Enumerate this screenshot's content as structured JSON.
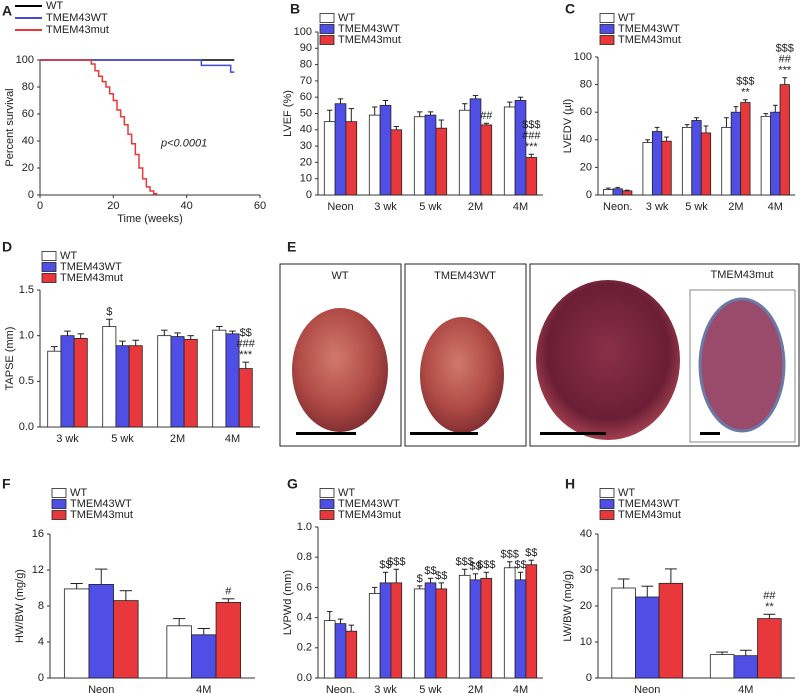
{
  "chart_data": [
    {
      "type": "line",
      "panel": "A",
      "ylabel": "Percent survival",
      "xlabel": "Time (weeks)",
      "annotation": "p<0.0001",
      "xlim": [
        0,
        60
      ],
      "xticks": [
        0,
        20,
        40,
        60
      ],
      "ylim": [
        0,
        100
      ],
      "yticks": [
        0,
        20,
        40,
        60,
        80,
        100
      ],
      "legend": "top",
      "series": [
        {
          "name": "WT",
          "color": "#000000",
          "x": [
            0,
            53
          ],
          "values": [
            100,
            100
          ]
        },
        {
          "name": "TMEM43WT",
          "color": "#4a4ad8",
          "x": [
            0,
            44,
            44,
            52,
            52,
            53
          ],
          "values": [
            100,
            100,
            96,
            96,
            91,
            91
          ]
        },
        {
          "name": "TMEM43mut",
          "color": "#e8383c",
          "x": [
            0,
            14,
            14,
            15,
            15,
            16,
            16,
            17,
            17,
            18,
            18,
            19,
            19,
            20,
            20,
            21,
            21,
            22,
            22,
            23,
            23,
            24,
            24,
            25,
            25,
            26,
            26,
            27,
            27,
            28,
            28,
            29,
            29,
            30,
            30,
            31,
            31,
            32
          ],
          "values": [
            100,
            100,
            97,
            97,
            92,
            92,
            88,
            88,
            84,
            84,
            80,
            80,
            75,
            75,
            70,
            70,
            63,
            63,
            58,
            58,
            52,
            52,
            45,
            45,
            38,
            38,
            30,
            30,
            20,
            20,
            12,
            12,
            6,
            6,
            3,
            3,
            1,
            1
          ]
        }
      ]
    },
    {
      "type": "bar",
      "panel": "B",
      "ylabel": "LVEF (%)",
      "categories": [
        "Neon",
        "3 wk",
        "5 wk",
        "2M",
        "4M"
      ],
      "ylim": [
        0,
        100
      ],
      "yticks": [
        0,
        10,
        20,
        30,
        40,
        50,
        60,
        70,
        80,
        90,
        100
      ],
      "legend": "upper left",
      "series": [
        {
          "name": "WT",
          "color": "#ffffff",
          "values": [
            45,
            49,
            48,
            52,
            54
          ],
          "errors": [
            7,
            5,
            3,
            4,
            3
          ]
        },
        {
          "name": "TMEM43WT",
          "color": "#4f4fe6",
          "values": [
            56,
            55,
            49,
            59,
            58
          ],
          "errors": [
            3,
            3,
            2,
            2,
            2
          ]
        },
        {
          "name": "TMEM43mut",
          "color": "#e8383c",
          "values": [
            45,
            40,
            41,
            43,
            23
          ],
          "errors": [
            8,
            2,
            5,
            1,
            2
          ],
          "annotations": [
            null,
            null,
            null,
            [
              "##"
            ],
            [
              "$$$",
              "###",
              "***"
            ]
          ]
        }
      ]
    },
    {
      "type": "bar",
      "panel": "C",
      "ylabel": "LVEDV (µl)",
      "categories": [
        "Neon.",
        "3 wk",
        "5 wk",
        "2M",
        "4M"
      ],
      "ylim": [
        0,
        100
      ],
      "yticks": [
        0,
        20,
        40,
        60,
        80,
        100
      ],
      "legend": "upper left",
      "series": [
        {
          "name": "WT",
          "color": "#ffffff",
          "values": [
            4,
            38,
            49,
            49,
            57
          ],
          "errors": [
            1,
            2,
            2,
            7,
            2
          ]
        },
        {
          "name": "TMEM43WT",
          "color": "#4f4fe6",
          "values": [
            4.5,
            46,
            54,
            60,
            60
          ],
          "errors": [
            1,
            3,
            2,
            4,
            5
          ]
        },
        {
          "name": "TMEM43mut",
          "color": "#e8383c",
          "values": [
            3,
            39,
            45,
            67,
            80
          ],
          "errors": [
            0.5,
            3,
            5,
            2,
            5
          ],
          "annotations": [
            null,
            null,
            null,
            [
              "$$$",
              "**"
            ],
            [
              "$$$",
              "##",
              "***"
            ]
          ]
        }
      ]
    },
    {
      "type": "bar",
      "panel": "D",
      "ylabel": "TAPSE (mm)",
      "categories": [
        "3 wk",
        "5 wk",
        "2M",
        "4M"
      ],
      "ylim": [
        0,
        1.5
      ],
      "yticks": [
        {
          "value": 0,
          "label": "0.0"
        },
        {
          "value": 0.5,
          "label": "0.5"
        },
        {
          "value": 1,
          "label": "1.0"
        },
        {
          "value": 1.5,
          "label": "1.5"
        }
      ],
      "legend": "upper left",
      "series": [
        {
          "name": "WT",
          "color": "#ffffff",
          "values": [
            0.83,
            1.1,
            1.0,
            1.06
          ],
          "errors": [
            0.05,
            0.08,
            0.06,
            0.04
          ],
          "annotations": [
            null,
            [
              "$"
            ],
            null,
            null
          ]
        },
        {
          "name": "TMEM43WT",
          "color": "#4f4fe6",
          "values": [
            1.0,
            0.89,
            0.99,
            1.02
          ],
          "errors": [
            0.05,
            0.05,
            0.04,
            0.03
          ]
        },
        {
          "name": "TMEM43mut",
          "color": "#e8383c",
          "values": [
            0.97,
            0.89,
            0.96,
            0.64
          ],
          "errors": [
            0.05,
            0.06,
            0.04,
            0.07
          ],
          "annotations": [
            null,
            null,
            null,
            [
              "$$",
              "###",
              "***"
            ]
          ]
        }
      ]
    },
    {
      "type": "bar",
      "panel": "F",
      "ylabel": "HW/BW (mg/g)",
      "categories": [
        "Neon",
        "4M"
      ],
      "ylim": [
        0,
        16
      ],
      "yticks": [
        0,
        4,
        8,
        12,
        16
      ],
      "legend": "upper left",
      "series": [
        {
          "name": "WT",
          "color": "#ffffff",
          "values": [
            9.9,
            5.8
          ],
          "errors": [
            0.6,
            0.8
          ]
        },
        {
          "name": "TMEM43WT",
          "color": "#4f4fe6",
          "values": [
            10.4,
            4.8
          ],
          "errors": [
            1.7,
            0.7
          ]
        },
        {
          "name": "TMEM43mut",
          "color": "#e8383c",
          "values": [
            8.6,
            8.4
          ],
          "errors": [
            1.1,
            0.4
          ],
          "annotations": [
            null,
            [
              "#"
            ]
          ]
        }
      ]
    },
    {
      "type": "bar",
      "panel": "G",
      "ylabel": "LVPWd (mm)",
      "categories": [
        "Neon.",
        "3 wk",
        "5 wk",
        "2M",
        "4M"
      ],
      "ylim": [
        0,
        1
      ],
      "yticks": [
        {
          "value": 0,
          "label": "0.0"
        },
        {
          "value": 0.2,
          "label": "0.2"
        },
        {
          "value": 0.4,
          "label": "0.4"
        },
        {
          "value": 0.6,
          "label": "0.6"
        },
        {
          "value": 0.8,
          "label": "0.8"
        },
        {
          "value": 1,
          "label": "1.0"
        }
      ],
      "legend": "upper left",
      "series": [
        {
          "name": "WT",
          "color": "#ffffff",
          "values": [
            0.38,
            0.56,
            0.59,
            0.68,
            0.73
          ],
          "errors": [
            0.06,
            0.04,
            0.02,
            0.04,
            0.04
          ],
          "annotations": [
            null,
            null,
            [
              "$"
            ],
            [
              "$$$"
            ],
            [
              "$$$"
            ]
          ]
        },
        {
          "name": "TMEM43WT",
          "color": "#4f4fe6",
          "values": [
            0.36,
            0.63,
            0.63,
            0.65,
            0.65
          ],
          "errors": [
            0.03,
            0.07,
            0.03,
            0.04,
            0.05
          ],
          "annotations": [
            null,
            [
              "$$"
            ],
            [
              "$$"
            ],
            [
              "$$"
            ],
            [
              "$$"
            ]
          ]
        },
        {
          "name": "TMEM43mut",
          "color": "#e8383c",
          "values": [
            0.31,
            0.63,
            0.59,
            0.66,
            0.75
          ],
          "errors": [
            0.04,
            0.09,
            0.04,
            0.04,
            0.03
          ],
          "annotations": [
            null,
            [
              "$$$"
            ],
            [
              "$$"
            ],
            [
              "$$$"
            ],
            [
              "$$"
            ]
          ]
        }
      ]
    },
    {
      "type": "bar",
      "panel": "H",
      "ylabel": "LW/BW (mg/g)",
      "categories": [
        "Neon",
        "4M"
      ],
      "ylim": [
        0,
        40
      ],
      "yticks": [
        0,
        10,
        20,
        30,
        40
      ],
      "legend": "upper left",
      "series": [
        {
          "name": "WT",
          "color": "#ffffff",
          "values": [
            25,
            6.5
          ],
          "errors": [
            2.5,
            0.7
          ]
        },
        {
          "name": "TMEM43WT",
          "color": "#4f4fe6",
          "values": [
            22.5,
            6.2
          ],
          "errors": [
            3,
            1.5
          ]
        },
        {
          "name": "TMEM43mut",
          "color": "#e8383c",
          "values": [
            26.3,
            16.5
          ],
          "errors": [
            4,
            1.2
          ],
          "annotations": [
            null,
            [
              "##",
              "**"
            ]
          ]
        }
      ]
    }
  ],
  "photo_panel": {
    "panel": "E",
    "labels": [
      "WT",
      "TMEM43WT",
      "TMEM43mut"
    ]
  }
}
